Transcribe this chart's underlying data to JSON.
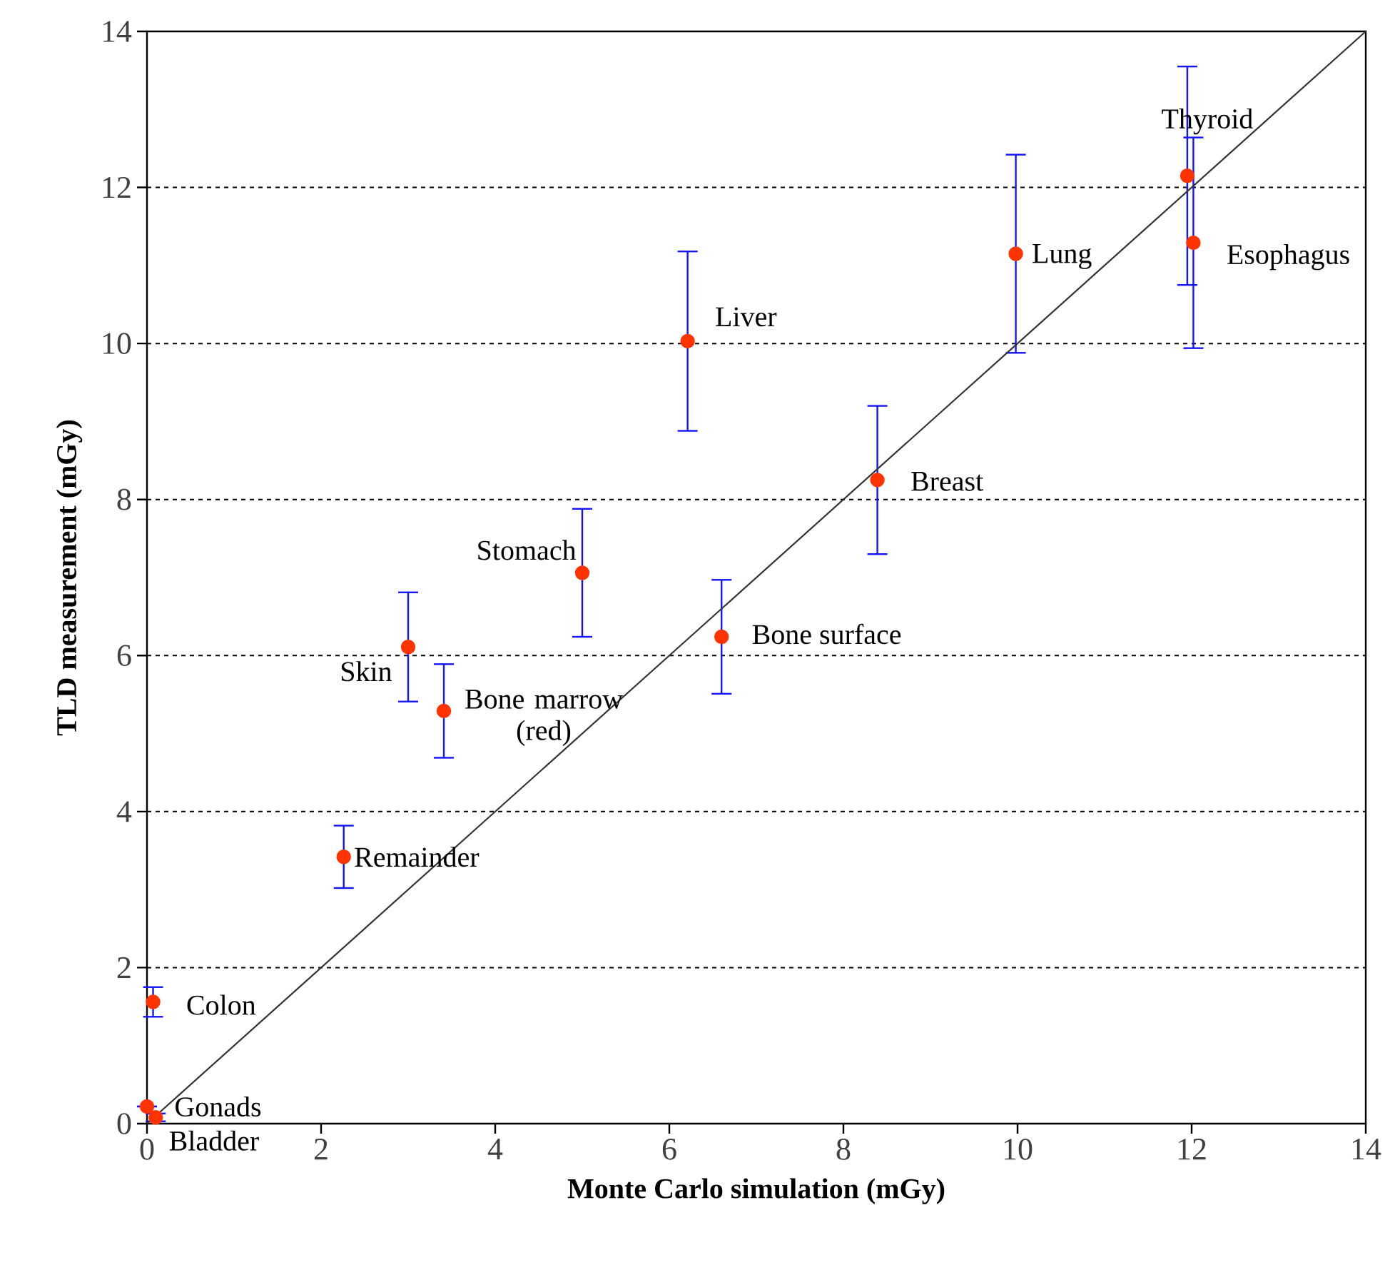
{
  "chart_data": {
    "type": "scatter",
    "xlabel": "Monte Carlo simulation (mGy)",
    "ylabel": "TLD measurement (mGy)",
    "xlim": [
      0,
      14
    ],
    "ylim": [
      0,
      14
    ],
    "xticks": [
      0,
      2,
      4,
      6,
      8,
      10,
      12,
      14
    ],
    "yticks": [
      0,
      2,
      4,
      6,
      8,
      10,
      12,
      14
    ],
    "grid": "y",
    "series": [
      {
        "color": "#ff3300",
        "marker": "circle",
        "x": [
          0.0,
          0.1,
          0.07,
          2.26,
          3.0,
          3.41,
          5.0,
          6.6,
          6.21,
          8.39,
          9.98,
          11.95,
          12.02
        ],
        "values": [
          0.22,
          0.08,
          1.56,
          3.42,
          6.11,
          5.29,
          7.06,
          6.24,
          10.03,
          8.25,
          11.15,
          12.15,
          11.29
        ],
        "errors": [
          null,
          0.05,
          0.19,
          0.4,
          0.7,
          0.6,
          0.82,
          0.73,
          1.15,
          0.95,
          1.27,
          1.4,
          1.35
        ]
      },
      {
        "type": "line",
        "color": "#333333",
        "marker": "none",
        "x": [
          0,
          14
        ],
        "values": [
          0,
          14
        ]
      }
    ],
    "annotations": [
      {
        "text": "Gonads",
        "x": 0.0,
        "y": 0.22
      },
      {
        "text": "Bladder",
        "x": 0.1,
        "y": 0.08
      },
      {
        "text": "Colon",
        "x": 0.07,
        "y": 1.56
      },
      {
        "text": "Remainder",
        "x": 2.26,
        "y": 3.42
      },
      {
        "text": "Skin",
        "x": 3.0,
        "y": 6.11
      },
      {
        "text": "Bone marrow (red)",
        "x": 3.41,
        "y": 5.29
      },
      {
        "text": "Stomach",
        "x": 5.0,
        "y": 7.06
      },
      {
        "text": "Bone surface",
        "x": 6.6,
        "y": 6.24
      },
      {
        "text": "Liver",
        "x": 6.21,
        "y": 10.03
      },
      {
        "text": "Breast",
        "x": 8.39,
        "y": 8.25
      },
      {
        "text": "Lung",
        "x": 9.98,
        "y": 11.15
      },
      {
        "text": "Thyroid",
        "x": 11.95,
        "y": 12.15
      },
      {
        "text": "Esophagus",
        "x": 12.02,
        "y": 11.29
      }
    ]
  }
}
